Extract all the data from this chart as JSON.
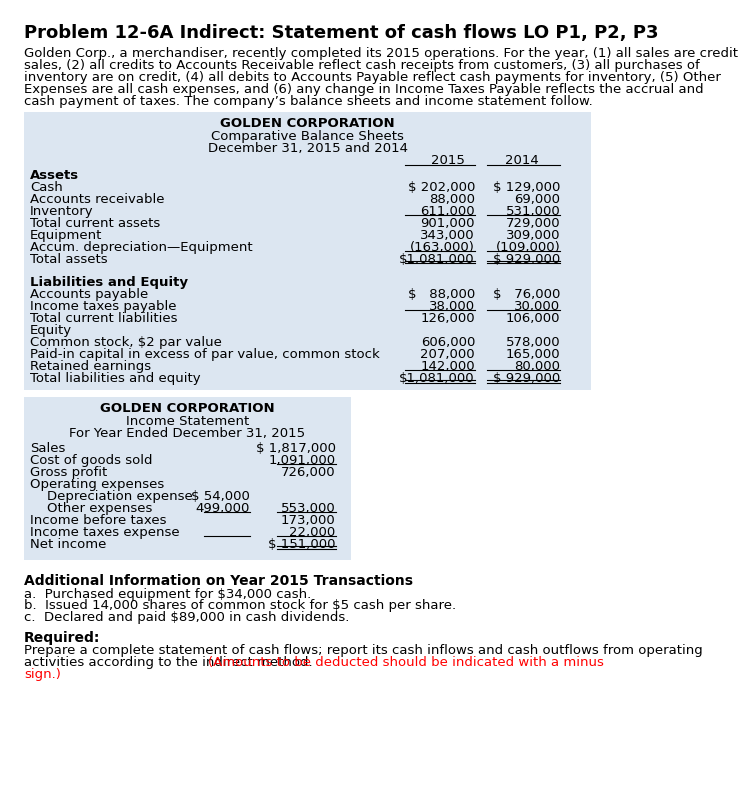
{
  "title": "Problem 12-6A Indirect: Statement of cash flows LO P1, P2, P3",
  "intro_lines": [
    "Golden Corp., a merchandiser, recently completed its 2015 operations. For the year, (1) all sales are credit",
    "sales, (2) all credits to Accounts Receivable reflect cash receipts from customers, (3) all purchases of",
    "inventory are on credit, (4) all debits to Accounts Payable reflect cash payments for inventory, (5) Other",
    "Expenses are all cash expenses, and (6) any change in Income Taxes Payable reflects the accrual and",
    "cash payment of taxes. The company’s balance sheets and income statement follow."
  ],
  "bs_header1": "GOLDEN CORPORATION",
  "bs_header2": "Comparative Balance Sheets",
  "bs_header3": "December 31, 2015 and 2014",
  "bs_col1": "2015",
  "bs_col2": "2014",
  "bs_rows": [
    {
      "label": "Assets",
      "val1": "",
      "val2": "",
      "bold": true,
      "space_before": false,
      "line_after": false,
      "double_line_after": false
    },
    {
      "label": "Cash",
      "val1": "$ 202,000",
      "val2": "$ 129,000",
      "bold": false,
      "space_before": false,
      "line_after": false,
      "double_line_after": false
    },
    {
      "label": "Accounts receivable",
      "val1": "88,000",
      "val2": "69,000",
      "bold": false,
      "space_before": false,
      "line_after": false,
      "double_line_after": false
    },
    {
      "label": "Inventory",
      "val1": "611,000",
      "val2": "531,000",
      "bold": false,
      "space_before": false,
      "line_after": true,
      "double_line_after": false
    },
    {
      "label": "Total current assets",
      "val1": "901,000",
      "val2": "729,000",
      "bold": false,
      "space_before": false,
      "line_after": false,
      "double_line_after": false
    },
    {
      "label": "Equipment",
      "val1": "343,000",
      "val2": "309,000",
      "bold": false,
      "space_before": false,
      "line_after": false,
      "double_line_after": false
    },
    {
      "label": "Accum. depreciation—Equipment",
      "val1": "(163,000)",
      "val2": "(109,000)",
      "bold": false,
      "space_before": false,
      "line_after": true,
      "double_line_after": false
    },
    {
      "label": "Total assets",
      "val1": "$1,081,000",
      "val2": "$ 929,000",
      "bold": false,
      "space_before": false,
      "line_after": false,
      "double_line_after": true
    },
    {
      "label": "",
      "val1": "",
      "val2": "",
      "bold": false,
      "space_before": false,
      "line_after": false,
      "double_line_after": false
    },
    {
      "label": "Liabilities and Equity",
      "val1": "",
      "val2": "",
      "bold": true,
      "space_before": false,
      "line_after": false,
      "double_line_after": false
    },
    {
      "label": "Accounts payable",
      "val1": "$   88,000",
      "val2": "$   76,000",
      "bold": false,
      "space_before": false,
      "line_after": false,
      "double_line_after": false
    },
    {
      "label": "Income taxes payable",
      "val1": "38,000",
      "val2": "30,000",
      "bold": false,
      "space_before": false,
      "line_after": true,
      "double_line_after": false
    },
    {
      "label": "Total current liabilities",
      "val1": "126,000",
      "val2": "106,000",
      "bold": false,
      "space_before": false,
      "line_after": false,
      "double_line_after": false
    },
    {
      "label": "Equity",
      "val1": "",
      "val2": "",
      "bold": false,
      "space_before": false,
      "line_after": false,
      "double_line_after": false
    },
    {
      "label": "Common stock, $2 par value",
      "val1": "606,000",
      "val2": "578,000",
      "bold": false,
      "space_before": false,
      "line_after": false,
      "double_line_after": false
    },
    {
      "label": "Paid-in capital in excess of par value, common stock",
      "val1": "207,000",
      "val2": "165,000",
      "bold": false,
      "space_before": false,
      "line_after": false,
      "double_line_after": false
    },
    {
      "label": "Retained earnings",
      "val1": "142,000",
      "val2": "80,000",
      "bold": false,
      "space_before": false,
      "line_after": true,
      "double_line_after": false
    },
    {
      "label": "Total liabilities and equity",
      "val1": "$1,081,000",
      "val2": "$ 929,000",
      "bold": false,
      "space_before": false,
      "line_after": false,
      "double_line_after": true
    }
  ],
  "is_header1": "GOLDEN CORPORATION",
  "is_header2": "Income Statement",
  "is_header3": "For Year Ended December 31, 2015",
  "is_rows": [
    {
      "label": "Sales",
      "col1": "",
      "col2": "$ 1,817,000",
      "line_after": false,
      "double_line_after": false
    },
    {
      "label": "Cost of goods sold",
      "col1": "",
      "col2": "1,091,000",
      "line_after": true,
      "double_line_after": false
    },
    {
      "label": "Gross profit",
      "col1": "",
      "col2": "726,000",
      "line_after": false,
      "double_line_after": false
    },
    {
      "label": "Operating expenses",
      "col1": "",
      "col2": "",
      "line_after": false,
      "double_line_after": false
    },
    {
      "label": "    Depreciation expense",
      "col1": "$ 54,000",
      "col2": "",
      "line_after": false,
      "double_line_after": false
    },
    {
      "label": "    Other expenses",
      "col1": "499,000",
      "col2": "553,000",
      "line_after": true,
      "double_line_after": false
    },
    {
      "label": "Income before taxes",
      "col1": "",
      "col2": "173,000",
      "line_after": false,
      "double_line_after": false
    },
    {
      "label": "Income taxes expense",
      "col1": "",
      "col2": "22,000",
      "line_after": true,
      "double_line_after": false
    },
    {
      "label": "Net income",
      "col1": "",
      "col2": "$ 151,000",
      "line_after": false,
      "double_line_after": true
    }
  ],
  "additional_title": "Additional Information on Year 2015 Transactions",
  "additional_items": [
    "a.  Purchased equipment for $34,000 cash.",
    "b.  Issued 14,000 shares of common stock for $5 cash per share.",
    "c.  Declared and paid $89,000 in cash dividends."
  ],
  "required_title": "Required:",
  "required_line1": "Prepare a complete statement of cash flows; report its cash inflows and cash outflows from operating",
  "required_line2_black": "activities according to the indirect method. ",
  "required_line2_red": "(Amounts to be deducted should be indicated with a minus",
  "required_line3_red": "sign.)",
  "bg_color": "#dce6f1",
  "white_bg": "#ffffff"
}
